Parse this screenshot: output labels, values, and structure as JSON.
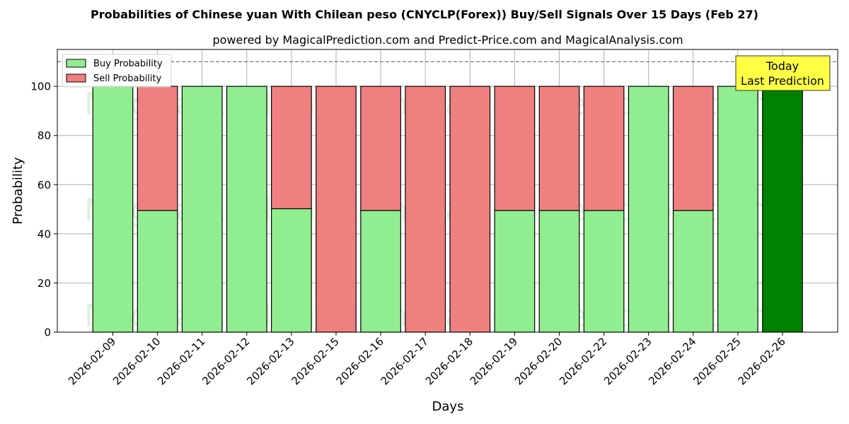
{
  "chart_data": {
    "type": "bar",
    "stacked": true,
    "title": "Probabilities of Chinese yuan With Chilean peso (CNYCLP(Forex)) Buy/Sell Signals Over 15 Days (Feb 27)",
    "subtitle": "powered by MagicalPrediction.com and Predict-Price.com and MagicalAnalysis.com",
    "xlabel": "Days",
    "ylabel": "Probability",
    "ylim": [
      0,
      115
    ],
    "yticks": [
      0,
      20,
      40,
      60,
      80,
      100
    ],
    "grid": true,
    "legend_position": "top-left",
    "reference_line": 110,
    "categories": [
      "2026-02-09",
      "2026-02-10",
      "2026-02-11",
      "2026-02-12",
      "2026-02-13",
      "2026-02-15",
      "2026-02-16",
      "2026-02-17",
      "2026-02-18",
      "2026-02-19",
      "2026-02-20",
      "2026-02-22",
      "2026-02-23",
      "2026-02-24",
      "2026-02-25",
      "2026-02-26"
    ],
    "series": [
      {
        "name": "Buy Probability",
        "color": "#90ee90",
        "values": [
          100,
          49.5,
          100,
          100,
          50.2,
          0,
          49.5,
          0,
          0,
          49.5,
          49.5,
          49.5,
          100,
          49.5,
          100,
          100
        ]
      },
      {
        "name": "Sell Probability",
        "color": "#f08080",
        "values": [
          0,
          50.5,
          0,
          0,
          49.8,
          100,
          50.5,
          100,
          100,
          50.5,
          50.5,
          50.5,
          0,
          50.5,
          0,
          0
        ]
      }
    ],
    "highlight_color": "#008000",
    "highlight_index": 15,
    "annotation": {
      "line1": "Today",
      "line2": "Last Prediction",
      "color": "#ffff44"
    },
    "watermarks": [
      "MagicalAnalysis.com",
      "MagicalPrediction.com"
    ]
  }
}
